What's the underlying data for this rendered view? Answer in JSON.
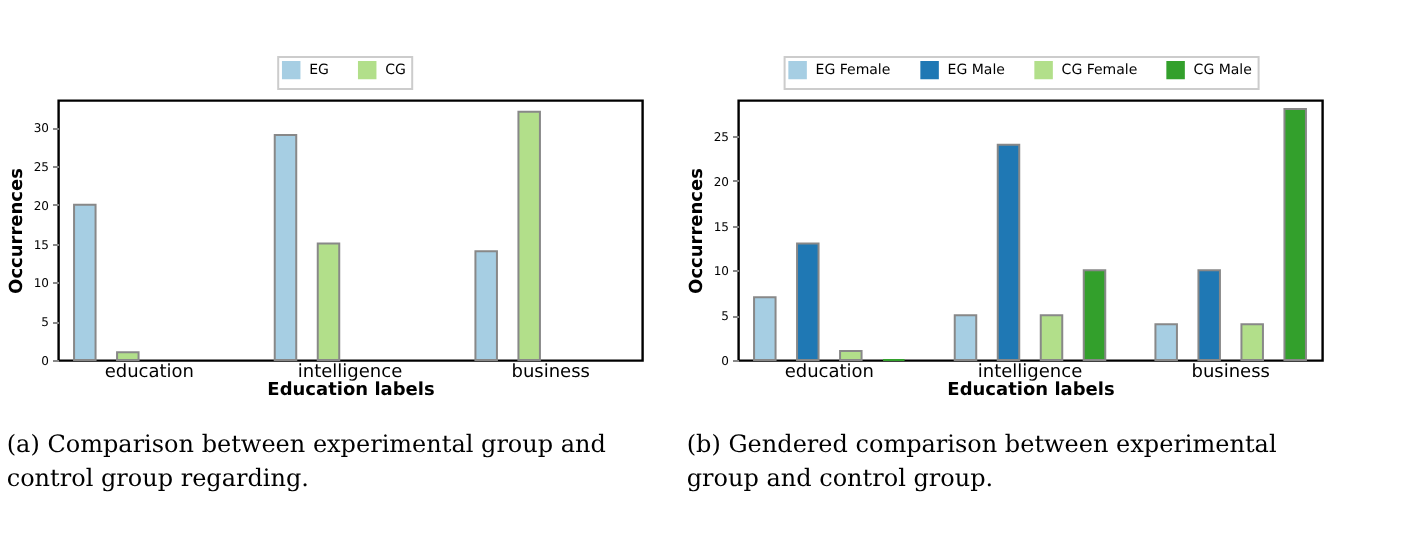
{
  "chart_data": [
    {
      "type": "bar",
      "xlabel": "Education labels",
      "ylabel": "Occurrences",
      "categories": [
        "education",
        "intelligence",
        "business"
      ],
      "ylim": [
        0,
        33.5
      ],
      "yticks": [
        0,
        5,
        10,
        15,
        20,
        25,
        30
      ],
      "grid": false,
      "legend": "top",
      "series": [
        {
          "name": "EG",
          "color": "#a6cee3",
          "values": [
            20,
            29,
            14
          ]
        },
        {
          "name": "CG",
          "color": "#b2df8a",
          "values": [
            1,
            15,
            32
          ]
        }
      ],
      "annotations": [
        "(a) Comparison between experimental group and control group regarding."
      ]
    },
    {
      "type": "bar",
      "xlabel": "Education labels",
      "ylabel": "Occurrences",
      "categories": [
        "education",
        "intelligence",
        "business"
      ],
      "ylim": [
        0,
        29
      ],
      "yticks": [
        0,
        5,
        10,
        15,
        20,
        25
      ],
      "grid": false,
      "legend": "top",
      "series": [
        {
          "name": "EG Female",
          "color": "#a6cee3",
          "values": [
            7,
            5,
            4
          ]
        },
        {
          "name": "EG Male",
          "color": "#1f78b4",
          "values": [
            13,
            24,
            10
          ]
        },
        {
          "name": "CG Female",
          "color": "#b2df8a",
          "values": [
            1,
            5,
            4
          ]
        },
        {
          "name": "CG Male",
          "color": "#33a02c",
          "values": [
            0,
            10,
            28
          ]
        }
      ],
      "annotations": [
        "(b) Gendered comparison between experimental group and control group."
      ]
    }
  ]
}
